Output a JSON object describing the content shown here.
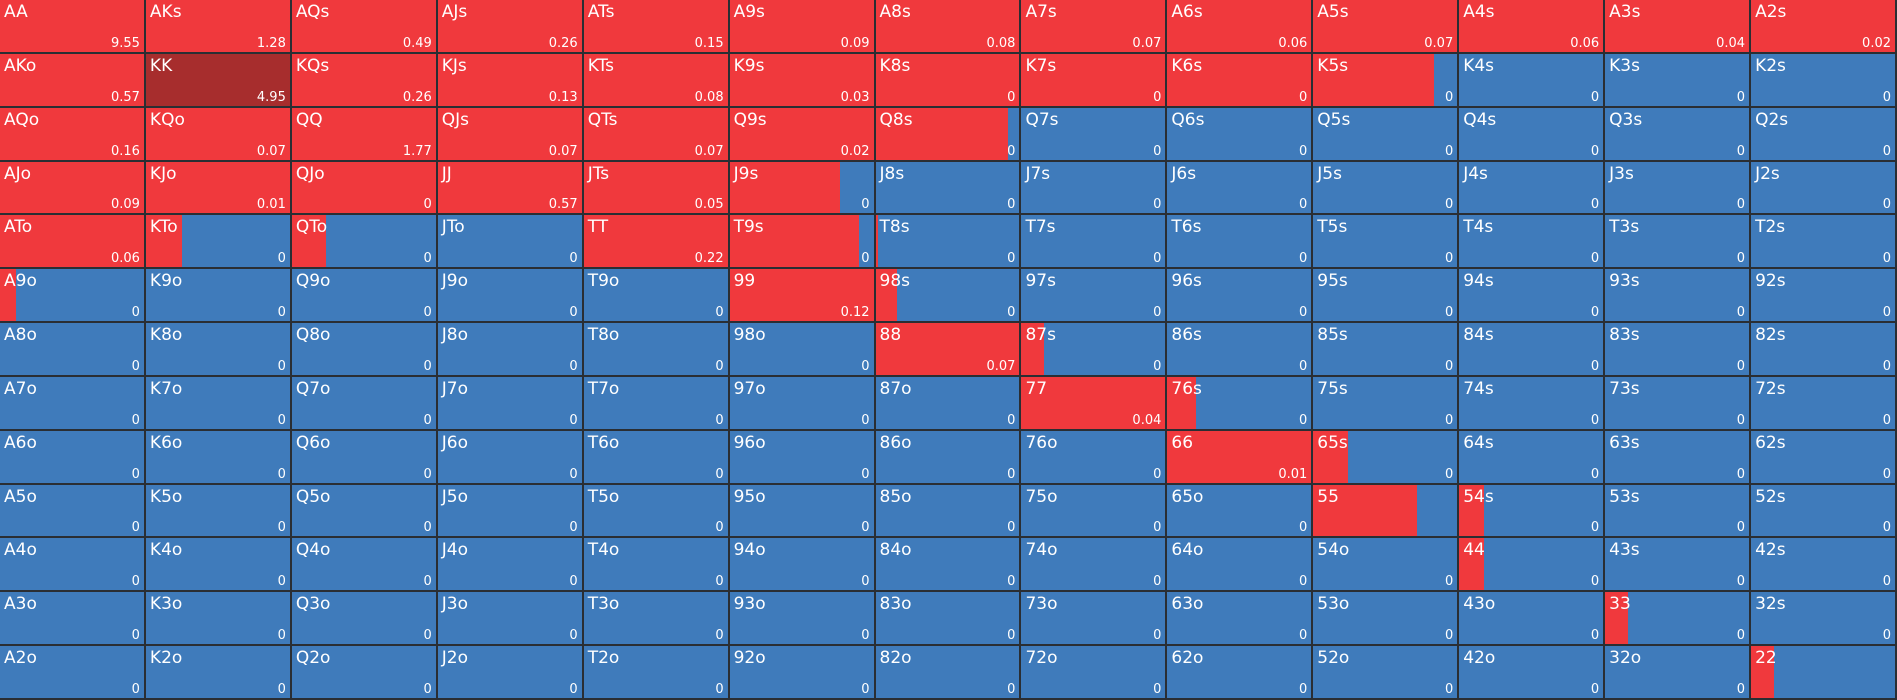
{
  "colors": {
    "raise": "#f0393d",
    "fold": "#3f7bbb",
    "selected": "#a72d2d"
  },
  "selected_hand": "KK",
  "rows": [
    [
      {
        "hand": "AA",
        "value": "9.55",
        "raise": 1
      },
      {
        "hand": "AKs",
        "value": "1.28",
        "raise": 1
      },
      {
        "hand": "AQs",
        "value": "0.49",
        "raise": 1
      },
      {
        "hand": "AJs",
        "value": "0.26",
        "raise": 1
      },
      {
        "hand": "ATs",
        "value": "0.15",
        "raise": 1
      },
      {
        "hand": "A9s",
        "value": "0.09",
        "raise": 1
      },
      {
        "hand": "A8s",
        "value": "0.08",
        "raise": 1
      },
      {
        "hand": "A7s",
        "value": "0.07",
        "raise": 1
      },
      {
        "hand": "A6s",
        "value": "0.06",
        "raise": 1
      },
      {
        "hand": "A5s",
        "value": "0.07",
        "raise": 1
      },
      {
        "hand": "A4s",
        "value": "0.06",
        "raise": 1
      },
      {
        "hand": "A3s",
        "value": "0.04",
        "raise": 1
      },
      {
        "hand": "A2s",
        "value": "0.02",
        "raise": 1
      }
    ],
    [
      {
        "hand": "AKo",
        "value": "0.57",
        "raise": 1
      },
      {
        "hand": "KK",
        "value": "4.95",
        "raise": 1
      },
      {
        "hand": "KQs",
        "value": "0.26",
        "raise": 1
      },
      {
        "hand": "KJs",
        "value": "0.13",
        "raise": 1
      },
      {
        "hand": "KTs",
        "value": "0.08",
        "raise": 1
      },
      {
        "hand": "K9s",
        "value": "0.03",
        "raise": 1
      },
      {
        "hand": "K8s",
        "value": "0",
        "raise": 1
      },
      {
        "hand": "K7s",
        "value": "0",
        "raise": 1
      },
      {
        "hand": "K6s",
        "value": "0",
        "raise": 1
      },
      {
        "hand": "K5s",
        "value": "0",
        "raise": 0.84
      },
      {
        "hand": "K4s",
        "value": "0",
        "raise": 0
      },
      {
        "hand": "K3s",
        "value": "0",
        "raise": 0
      },
      {
        "hand": "K2s",
        "value": "0",
        "raise": 0
      }
    ],
    [
      {
        "hand": "AQo",
        "value": "0.16",
        "raise": 1
      },
      {
        "hand": "KQo",
        "value": "0.07",
        "raise": 1
      },
      {
        "hand": "QQ",
        "value": "1.77",
        "raise": 1
      },
      {
        "hand": "QJs",
        "value": "0.07",
        "raise": 1
      },
      {
        "hand": "QTs",
        "value": "0.07",
        "raise": 1
      },
      {
        "hand": "Q9s",
        "value": "0.02",
        "raise": 1
      },
      {
        "hand": "Q8s",
        "value": "0",
        "raise": 0.92
      },
      {
        "hand": "Q7s",
        "value": "0",
        "raise": 0
      },
      {
        "hand": "Q6s",
        "value": "0",
        "raise": 0
      },
      {
        "hand": "Q5s",
        "value": "0",
        "raise": 0
      },
      {
        "hand": "Q4s",
        "value": "0",
        "raise": 0
      },
      {
        "hand": "Q3s",
        "value": "0",
        "raise": 0
      },
      {
        "hand": "Q2s",
        "value": "0",
        "raise": 0
      }
    ],
    [
      {
        "hand": "AJo",
        "value": "0.09",
        "raise": 1
      },
      {
        "hand": "KJo",
        "value": "0.01",
        "raise": 1
      },
      {
        "hand": "QJo",
        "value": "0",
        "raise": 1
      },
      {
        "hand": "JJ",
        "value": "0.57",
        "raise": 1
      },
      {
        "hand": "JTs",
        "value": "0.05",
        "raise": 1
      },
      {
        "hand": "J9s",
        "value": "0",
        "raise": 0.77
      },
      {
        "hand": "J8s",
        "value": "0",
        "raise": 0
      },
      {
        "hand": "J7s",
        "value": "0",
        "raise": 0
      },
      {
        "hand": "J6s",
        "value": "0",
        "raise": 0
      },
      {
        "hand": "J5s",
        "value": "0",
        "raise": 0
      },
      {
        "hand": "J4s",
        "value": "0",
        "raise": 0
      },
      {
        "hand": "J3s",
        "value": "0",
        "raise": 0
      },
      {
        "hand": "J2s",
        "value": "0",
        "raise": 0
      }
    ],
    [
      {
        "hand": "ATo",
        "value": "0.06",
        "raise": 1
      },
      {
        "hand": "KTo",
        "value": "0",
        "raise": 0.25
      },
      {
        "hand": "QTo",
        "value": "0",
        "raise": 0.24
      },
      {
        "hand": "JTo",
        "value": "0",
        "raise": 0
      },
      {
        "hand": "TT",
        "value": "0.22",
        "raise": 1
      },
      {
        "hand": "T9s",
        "value": "0",
        "raise": 0.9
      },
      {
        "hand": "T8s",
        "value": "0",
        "raise": 0.02
      },
      {
        "hand": "T7s",
        "value": "0",
        "raise": 0
      },
      {
        "hand": "T6s",
        "value": "0",
        "raise": 0
      },
      {
        "hand": "T5s",
        "value": "0",
        "raise": 0
      },
      {
        "hand": "T4s",
        "value": "0",
        "raise": 0
      },
      {
        "hand": "T3s",
        "value": "0",
        "raise": 0
      },
      {
        "hand": "T2s",
        "value": "0",
        "raise": 0
      }
    ],
    [
      {
        "hand": "A9o",
        "value": "0",
        "raise": 0.11
      },
      {
        "hand": "K9o",
        "value": "0",
        "raise": 0
      },
      {
        "hand": "Q9o",
        "value": "0",
        "raise": 0
      },
      {
        "hand": "J9o",
        "value": "0",
        "raise": 0
      },
      {
        "hand": "T9o",
        "value": "0",
        "raise": 0
      },
      {
        "hand": "99",
        "value": "0.12",
        "raise": 1
      },
      {
        "hand": "98s",
        "value": "0",
        "raise": 0.15
      },
      {
        "hand": "97s",
        "value": "0",
        "raise": 0
      },
      {
        "hand": "96s",
        "value": "0",
        "raise": 0
      },
      {
        "hand": "95s",
        "value": "0",
        "raise": 0
      },
      {
        "hand": "94s",
        "value": "0",
        "raise": 0
      },
      {
        "hand": "93s",
        "value": "0",
        "raise": 0
      },
      {
        "hand": "92s",
        "value": "0",
        "raise": 0
      }
    ],
    [
      {
        "hand": "A8o",
        "value": "0",
        "raise": 0
      },
      {
        "hand": "K8o",
        "value": "0",
        "raise": 0
      },
      {
        "hand": "Q8o",
        "value": "0",
        "raise": 0
      },
      {
        "hand": "J8o",
        "value": "0",
        "raise": 0
      },
      {
        "hand": "T8o",
        "value": "0",
        "raise": 0
      },
      {
        "hand": "98o",
        "value": "0",
        "raise": 0
      },
      {
        "hand": "88",
        "value": "0.07",
        "raise": 1
      },
      {
        "hand": "87s",
        "value": "0",
        "raise": 0.16
      },
      {
        "hand": "86s",
        "value": "0",
        "raise": 0
      },
      {
        "hand": "85s",
        "value": "0",
        "raise": 0
      },
      {
        "hand": "84s",
        "value": "0",
        "raise": 0
      },
      {
        "hand": "83s",
        "value": "0",
        "raise": 0
      },
      {
        "hand": "82s",
        "value": "0",
        "raise": 0
      }
    ],
    [
      {
        "hand": "A7o",
        "value": "0",
        "raise": 0
      },
      {
        "hand": "K7o",
        "value": "0",
        "raise": 0
      },
      {
        "hand": "Q7o",
        "value": "0",
        "raise": 0
      },
      {
        "hand": "J7o",
        "value": "0",
        "raise": 0
      },
      {
        "hand": "T7o",
        "value": "0",
        "raise": 0
      },
      {
        "hand": "97o",
        "value": "0",
        "raise": 0
      },
      {
        "hand": "87o",
        "value": "0",
        "raise": 0
      },
      {
        "hand": "77",
        "value": "0.04",
        "raise": 1
      },
      {
        "hand": "76s",
        "value": "0",
        "raise": 0.2
      },
      {
        "hand": "75s",
        "value": "0",
        "raise": 0
      },
      {
        "hand": "74s",
        "value": "0",
        "raise": 0
      },
      {
        "hand": "73s",
        "value": "0",
        "raise": 0
      },
      {
        "hand": "72s",
        "value": "0",
        "raise": 0
      }
    ],
    [
      {
        "hand": "A6o",
        "value": "0",
        "raise": 0
      },
      {
        "hand": "K6o",
        "value": "0",
        "raise": 0
      },
      {
        "hand": "Q6o",
        "value": "0",
        "raise": 0
      },
      {
        "hand": "J6o",
        "value": "0",
        "raise": 0
      },
      {
        "hand": "T6o",
        "value": "0",
        "raise": 0
      },
      {
        "hand": "96o",
        "value": "0",
        "raise": 0
      },
      {
        "hand": "86o",
        "value": "0",
        "raise": 0
      },
      {
        "hand": "76o",
        "value": "0",
        "raise": 0
      },
      {
        "hand": "66",
        "value": "0.01",
        "raise": 1
      },
      {
        "hand": "65s",
        "value": "0",
        "raise": 0.24
      },
      {
        "hand": "64s",
        "value": "0",
        "raise": 0
      },
      {
        "hand": "63s",
        "value": "0",
        "raise": 0
      },
      {
        "hand": "62s",
        "value": "0",
        "raise": 0
      }
    ],
    [
      {
        "hand": "A5o",
        "value": "0",
        "raise": 0
      },
      {
        "hand": "K5o",
        "value": "0",
        "raise": 0
      },
      {
        "hand": "Q5o",
        "value": "0",
        "raise": 0
      },
      {
        "hand": "J5o",
        "value": "0",
        "raise": 0
      },
      {
        "hand": "T5o",
        "value": "0",
        "raise": 0
      },
      {
        "hand": "95o",
        "value": "0",
        "raise": 0
      },
      {
        "hand": "85o",
        "value": "0",
        "raise": 0
      },
      {
        "hand": "75o",
        "value": "0",
        "raise": 0
      },
      {
        "hand": "65o",
        "value": "0",
        "raise": 0
      },
      {
        "hand": "55",
        "value": "",
        "raise": 0.72
      },
      {
        "hand": "54s",
        "value": "0",
        "raise": 0.17
      },
      {
        "hand": "53s",
        "value": "0",
        "raise": 0
      },
      {
        "hand": "52s",
        "value": "0",
        "raise": 0
      }
    ],
    [
      {
        "hand": "A4o",
        "value": "0",
        "raise": 0
      },
      {
        "hand": "K4o",
        "value": "0",
        "raise": 0
      },
      {
        "hand": "Q4o",
        "value": "0",
        "raise": 0
      },
      {
        "hand": "J4o",
        "value": "0",
        "raise": 0
      },
      {
        "hand": "T4o",
        "value": "0",
        "raise": 0
      },
      {
        "hand": "94o",
        "value": "0",
        "raise": 0
      },
      {
        "hand": "84o",
        "value": "0",
        "raise": 0
      },
      {
        "hand": "74o",
        "value": "0",
        "raise": 0
      },
      {
        "hand": "64o",
        "value": "0",
        "raise": 0
      },
      {
        "hand": "54o",
        "value": "0",
        "raise": 0
      },
      {
        "hand": "44",
        "value": "0",
        "raise": 0.17
      },
      {
        "hand": "43s",
        "value": "0",
        "raise": 0
      },
      {
        "hand": "42s",
        "value": "0",
        "raise": 0
      }
    ],
    [
      {
        "hand": "A3o",
        "value": "0",
        "raise": 0
      },
      {
        "hand": "K3o",
        "value": "0",
        "raise": 0
      },
      {
        "hand": "Q3o",
        "value": "0",
        "raise": 0
      },
      {
        "hand": "J3o",
        "value": "0",
        "raise": 0
      },
      {
        "hand": "T3o",
        "value": "0",
        "raise": 0
      },
      {
        "hand": "93o",
        "value": "0",
        "raise": 0
      },
      {
        "hand": "83o",
        "value": "0",
        "raise": 0
      },
      {
        "hand": "73o",
        "value": "0",
        "raise": 0
      },
      {
        "hand": "63o",
        "value": "0",
        "raise": 0
      },
      {
        "hand": "53o",
        "value": "0",
        "raise": 0
      },
      {
        "hand": "43o",
        "value": "0",
        "raise": 0
      },
      {
        "hand": "33",
        "value": "0",
        "raise": 0.16
      },
      {
        "hand": "32s",
        "value": "0",
        "raise": 0
      }
    ],
    [
      {
        "hand": "A2o",
        "value": "0",
        "raise": 0
      },
      {
        "hand": "K2o",
        "value": "0",
        "raise": 0
      },
      {
        "hand": "Q2o",
        "value": "0",
        "raise": 0
      },
      {
        "hand": "J2o",
        "value": "0",
        "raise": 0
      },
      {
        "hand": "T2o",
        "value": "0",
        "raise": 0
      },
      {
        "hand": "92o",
        "value": "0",
        "raise": 0
      },
      {
        "hand": "82o",
        "value": "0",
        "raise": 0
      },
      {
        "hand": "72o",
        "value": "0",
        "raise": 0
      },
      {
        "hand": "62o",
        "value": "0",
        "raise": 0
      },
      {
        "hand": "52o",
        "value": "0",
        "raise": 0
      },
      {
        "hand": "42o",
        "value": "0",
        "raise": 0
      },
      {
        "hand": "32o",
        "value": "0",
        "raise": 0
      },
      {
        "hand": "22",
        "value": "",
        "raise": 0.16
      }
    ]
  ]
}
